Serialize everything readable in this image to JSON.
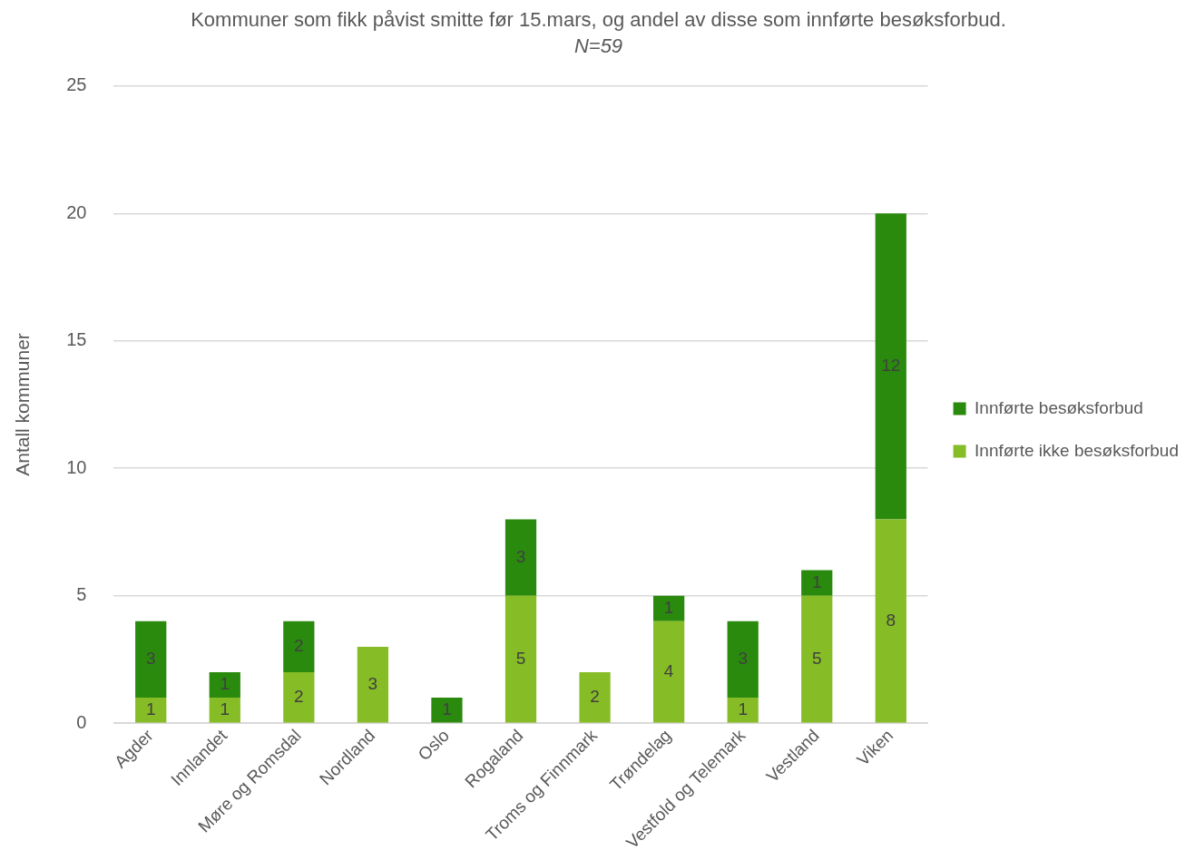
{
  "chart_data": {
    "type": "bar",
    "title": "Kommuner som fikk påvist smitte før 15.mars, og andel av disse som innførte besøksforbud.",
    "subtitle": "N=59",
    "ylabel": "Antall kommuner",
    "categories": [
      "Agder",
      "Innlandet",
      "Møre og Romsdal",
      "Nordland",
      "Oslo",
      "Rogaland",
      "Troms og Finnmark",
      "Trøndelag",
      "Vestfold og Telemark",
      "Vestland",
      "Viken"
    ],
    "stacked": true,
    "series": [
      {
        "name": "Innførte ikke besøksforbud",
        "color": "#86bc25",
        "values": [
          1,
          1,
          2,
          3,
          0,
          5,
          2,
          4,
          1,
          5,
          8
        ],
        "value_labels": [
          "1",
          "1",
          "2",
          "3",
          null,
          "5",
          "2",
          "4",
          "1",
          "5",
          "8"
        ]
      },
      {
        "name": "Innførte besøksforbud",
        "color": "#2a8a0e",
        "values": [
          3,
          1,
          2,
          0,
          1,
          3,
          0,
          1,
          3,
          1,
          12
        ],
        "value_labels": [
          "3",
          "1",
          "2",
          null,
          "1",
          "3",
          null,
          "1",
          "3",
          "1",
          "12"
        ]
      }
    ],
    "ylim": [
      0,
      25
    ],
    "yticks": [
      0,
      5,
      10,
      15,
      20,
      25
    ],
    "grid": "y",
    "legend": "right"
  }
}
